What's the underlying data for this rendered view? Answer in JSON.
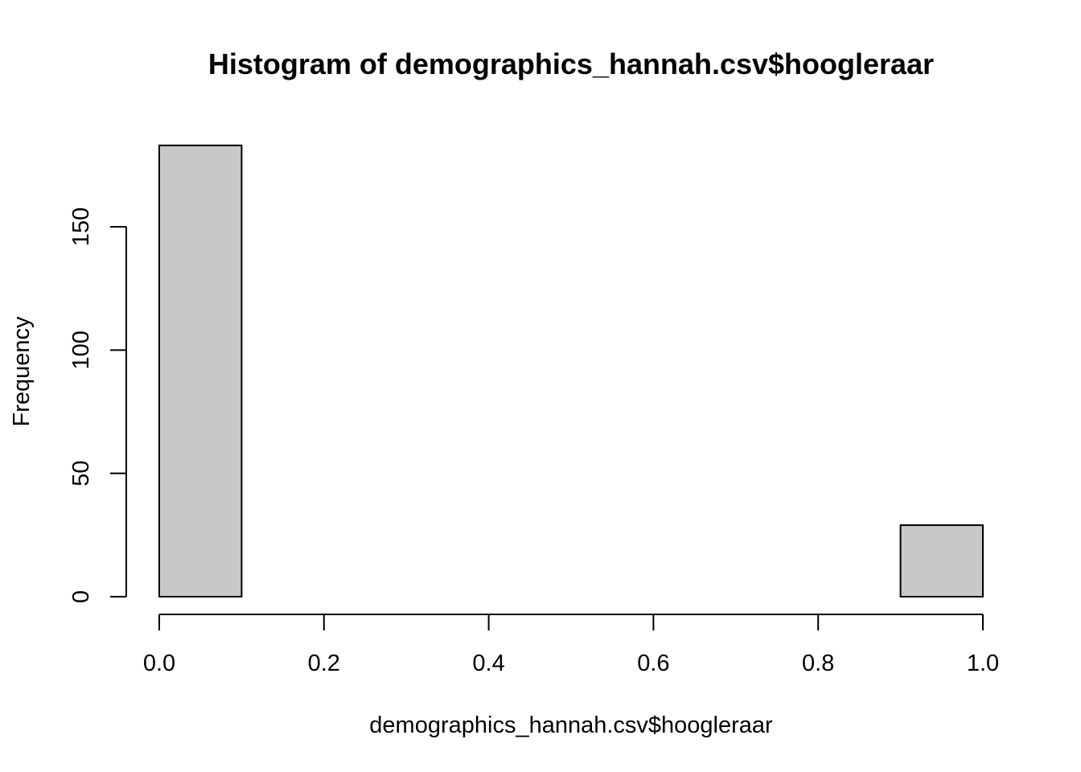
{
  "chart_data": {
    "type": "bar",
    "title": "Histogram of demographics_hannah.csv$hoogleraar",
    "xlabel": "demographics_hannah.csv$hoogleraar",
    "ylabel": "Frequency",
    "xlim": [
      0,
      1
    ],
    "ylim": [
      0,
      180
    ],
    "bin_edges": [
      0,
      0.1,
      0.2,
      0.3,
      0.4,
      0.5,
      0.6,
      0.7,
      0.8,
      0.9,
      1.0
    ],
    "values": [
      183,
      0,
      0,
      0,
      0,
      0,
      0,
      0,
      0,
      29
    ],
    "x_ticks": [
      "0.0",
      "0.2",
      "0.4",
      "0.6",
      "0.8",
      "1.0"
    ],
    "y_ticks": [
      "0",
      "50",
      "100",
      "150"
    ],
    "bar_fill": "#c8c8c8",
    "bar_stroke": "#000000",
    "grid": false,
    "legend": "none"
  }
}
